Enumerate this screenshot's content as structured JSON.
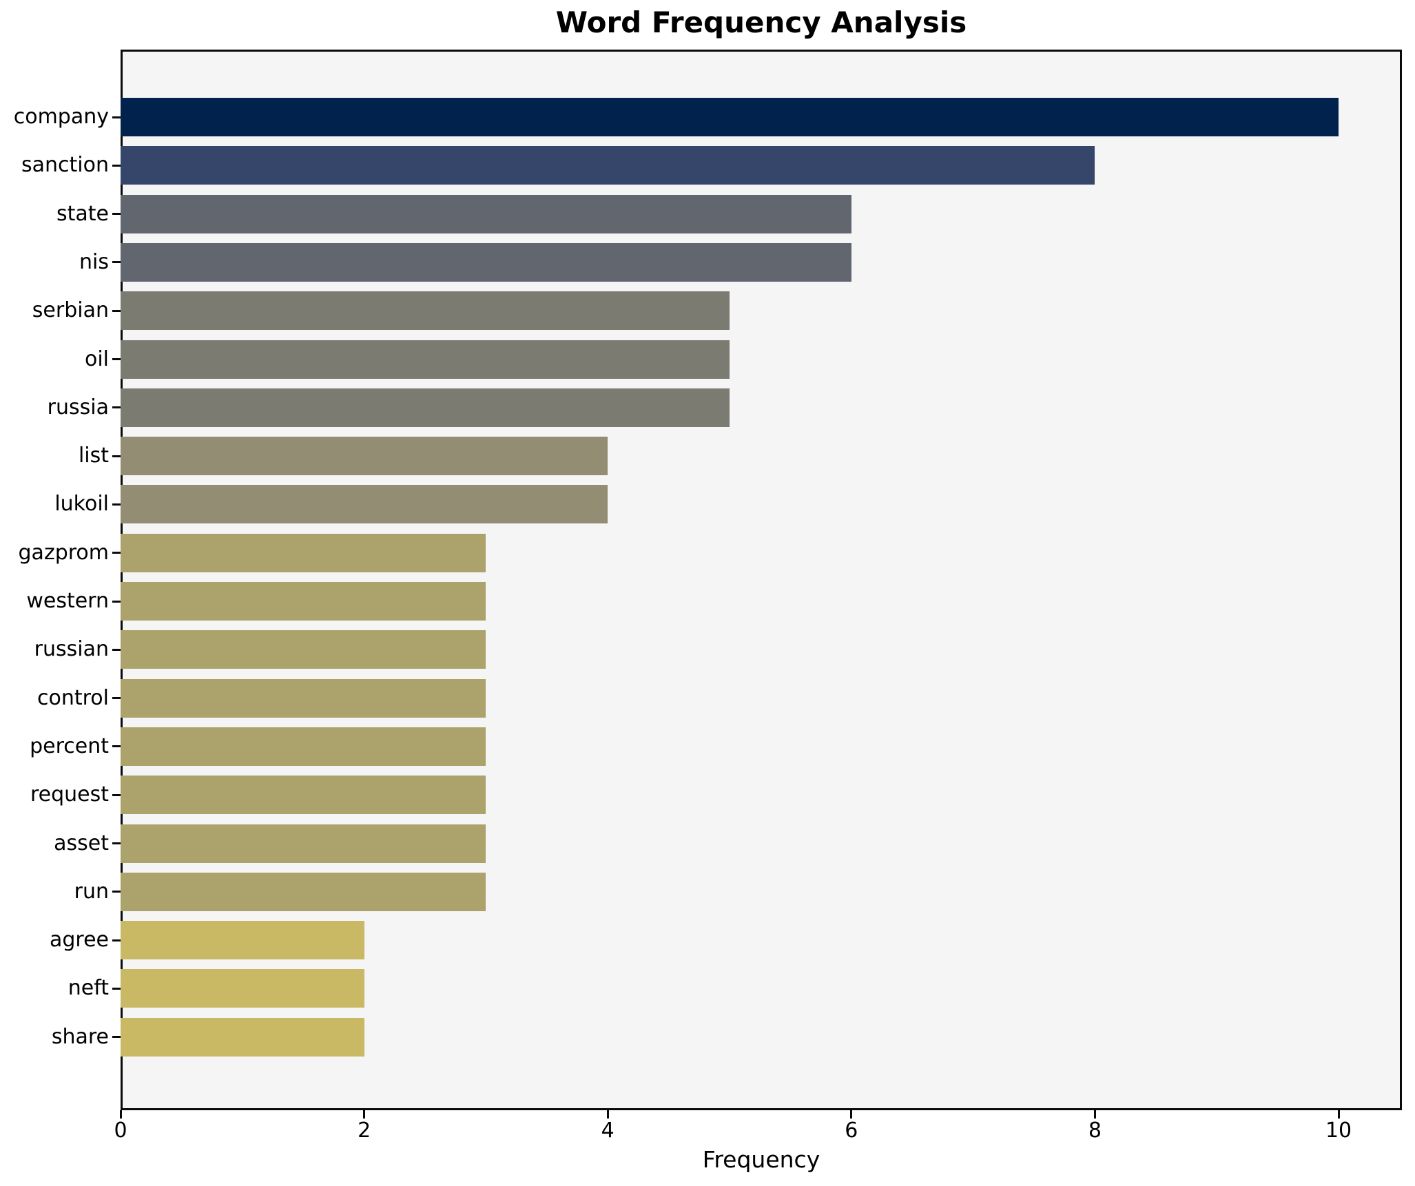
{
  "chart_data": {
    "type": "bar",
    "orientation": "horizontal",
    "title": "Word Frequency Analysis",
    "xlabel": "Frequency",
    "ylabel": "",
    "categories": [
      "company",
      "sanction",
      "state",
      "nis",
      "serbian",
      "oil",
      "russia",
      "list",
      "lukoil",
      "gazprom",
      "western",
      "russian",
      "control",
      "percent",
      "request",
      "asset",
      "run",
      "agree",
      "neft",
      "share"
    ],
    "values": [
      10,
      8,
      6,
      6,
      5,
      5,
      5,
      4,
      4,
      3,
      3,
      3,
      3,
      3,
      3,
      3,
      3,
      2,
      2,
      2
    ],
    "bar_colors": [
      "#02224e",
      "#36466b",
      "#62666f",
      "#62666f",
      "#7c7b71",
      "#7c7b71",
      "#7c7b71",
      "#938d74",
      "#938d74",
      "#aca36c",
      "#aca36c",
      "#aca36c",
      "#aca36c",
      "#aca36c",
      "#aca36c",
      "#aca36c",
      "#aca36c",
      "#cab964",
      "#cab964",
      "#cab964"
    ],
    "xlim": [
      0,
      10.52
    ],
    "xticks": [
      0,
      2,
      4,
      6,
      8,
      10
    ],
    "grid": false,
    "legend": null,
    "colormap": "cividis",
    "plot_background": "#f5f5f6",
    "spine_color": "#0a0a0a"
  }
}
